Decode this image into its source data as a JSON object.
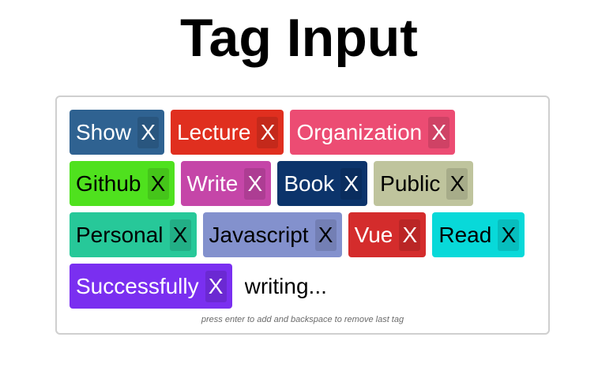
{
  "title": "Tag Input",
  "tags": [
    {
      "label": "Show",
      "remove_label": "X",
      "bg": "#2f6291",
      "fg": "#ffffff"
    },
    {
      "label": "Lecture",
      "remove_label": "X",
      "bg": "#e02f1f",
      "fg": "#ffffff"
    },
    {
      "label": "Organization",
      "remove_label": "X",
      "bg": "#ec4c73",
      "fg": "#ffffff"
    },
    {
      "label": "Github",
      "remove_label": "X",
      "bg": "#4fe11e",
      "fg": "#000000"
    },
    {
      "label": "Write",
      "remove_label": "X",
      "bg": "#c546a8",
      "fg": "#ffffff"
    },
    {
      "label": "Book",
      "remove_label": "X",
      "bg": "#0c346b",
      "fg": "#ffffff"
    },
    {
      "label": "Public",
      "remove_label": "X",
      "bg": "#bfc49d",
      "fg": "#000000"
    },
    {
      "label": "Personal",
      "remove_label": "X",
      "bg": "#27c899",
      "fg": "#000000"
    },
    {
      "label": "Javascript",
      "remove_label": "X",
      "bg": "#8391cd",
      "fg": "#000000"
    },
    {
      "label": "Vue",
      "remove_label": "X",
      "bg": "#d42c2c",
      "fg": "#ffffff"
    },
    {
      "label": "Read",
      "remove_label": "X",
      "bg": "#08d9d9",
      "fg": "#000000"
    },
    {
      "label": "Successfully",
      "remove_label": "X",
      "bg": "#7a2ff0",
      "fg": "#ffffff"
    }
  ],
  "input": {
    "value": "",
    "placeholder": "writing..."
  },
  "help_text": "press enter to add and backspace to remove last tag"
}
